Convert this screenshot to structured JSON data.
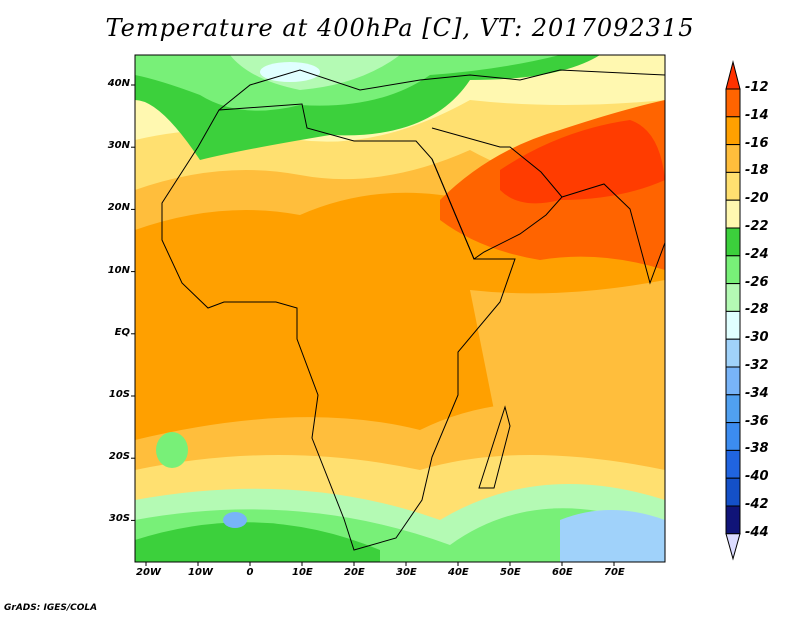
{
  "title": "Temperature at 400hPa [C], VT: 2017092315",
  "lat_labels": [
    "40N",
    "30N",
    "20N",
    "10N",
    "EQ",
    "10S",
    "20S",
    "30S"
  ],
  "lon_labels": [
    "20W",
    "10W",
    "0",
    "10E",
    "20E",
    "30E",
    "40E",
    "50E",
    "60E",
    "70E"
  ],
  "colorbar": {
    "labels": [
      "-12",
      "-14",
      "-16",
      "-18",
      "-20",
      "-22",
      "-24",
      "-26",
      "-28",
      "-30",
      "-32",
      "-34",
      "-36",
      "-38",
      "-40",
      "-42",
      "-44"
    ],
    "colors": [
      "#ff6400",
      "#ffa000",
      "#ffbe3c",
      "#ffe070",
      "#fff8b0",
      "#3cd03c",
      "#78f078",
      "#b4fab4",
      "#e0ffff",
      "#a0d2fa",
      "#78b4f8",
      "#50a0f0",
      "#3c8cf0",
      "#2064e0",
      "#1450c8",
      "#101478"
    ],
    "over_color": "#ff3200",
    "under_color": "#dcdcff"
  },
  "credit": "GrADS: IGES/COLA"
}
